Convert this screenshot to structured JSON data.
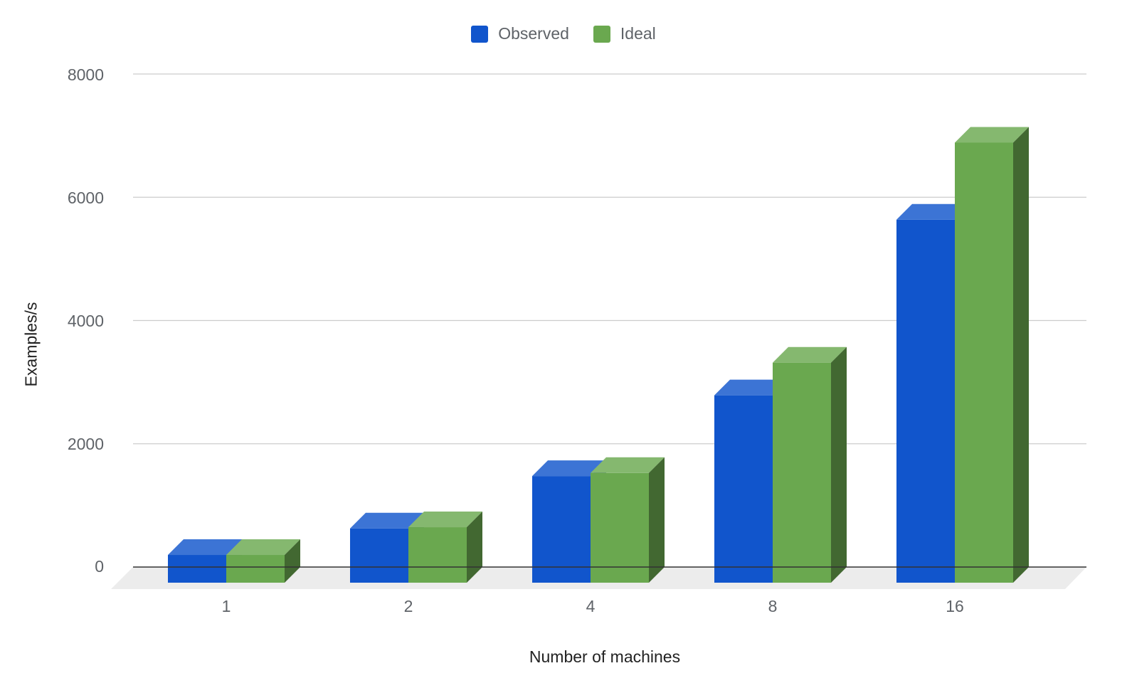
{
  "chart_data": {
    "type": "bar",
    "title": "",
    "xlabel": "Number of machines",
    "ylabel": "Examples/s",
    "categories": [
      "1",
      "2",
      "4",
      "8",
      "16"
    ],
    "series": [
      {
        "name": "Observed",
        "color": "#1155cc",
        "values": [
          450,
          880,
          1730,
          3040,
          5890
        ]
      },
      {
        "name": "Ideal",
        "color": "#6aa84f",
        "values": [
          450,
          900,
          1780,
          3570,
          7140
        ]
      }
    ],
    "ylim": [
      0,
      8000
    ],
    "yticks": [
      "0",
      "2000",
      "4000",
      "6000",
      "8000"
    ],
    "grid": true,
    "legend_position": "top",
    "style": "3d"
  }
}
